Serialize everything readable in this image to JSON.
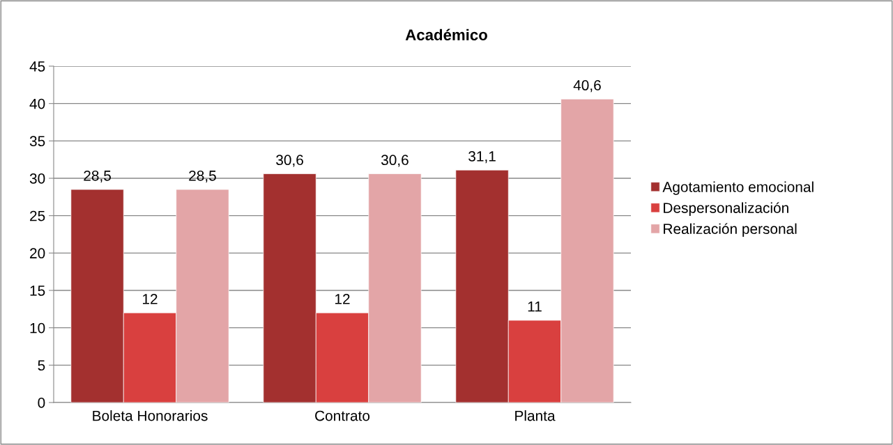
{
  "chart_data": {
    "type": "bar",
    "title": "Académico",
    "categories": [
      "Boleta Honorarios",
      "Contrato",
      "Planta"
    ],
    "series": [
      {
        "name": "Agotamiento emocional",
        "color": "#a3302f",
        "values": [
          28.5,
          30.6,
          31.1
        ],
        "value_labels": [
          "28,5",
          "30,6",
          "31,1"
        ]
      },
      {
        "name": "Despersonalización",
        "color": "#d9403f",
        "values": [
          12,
          12,
          11
        ],
        "value_labels": [
          "12",
          "12",
          "11"
        ]
      },
      {
        "name": "Realización personal",
        "color": "#e3a5a7",
        "values": [
          28.5,
          30.6,
          40.6
        ],
        "value_labels": [
          "28,5",
          "30,6",
          "40,6"
        ]
      }
    ],
    "ylim": [
      0,
      45
    ],
    "yticks": [
      0,
      5,
      10,
      15,
      20,
      25,
      30,
      35,
      40,
      45
    ],
    "grid": "y",
    "legend": "right"
  }
}
